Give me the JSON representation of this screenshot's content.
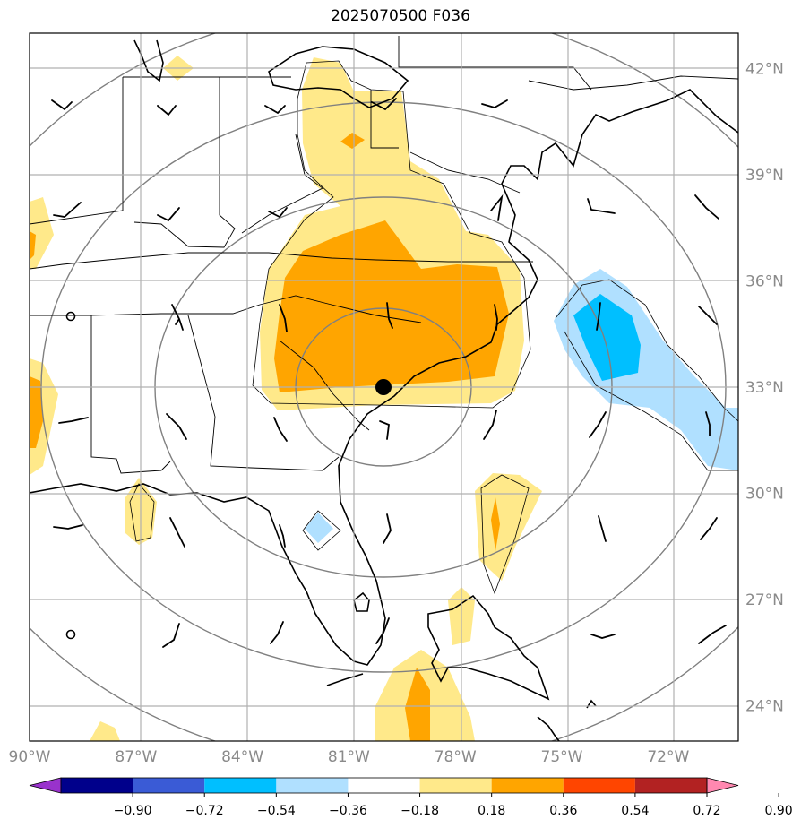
{
  "title": "2025070500 F036",
  "map": {
    "lon_range": [
      -90.0,
      -70.0
    ],
    "lat_range": [
      23.0,
      43.0
    ],
    "center_point": {
      "lon": -80.0,
      "lat": 33.0
    },
    "range_ring_degrees": [
      5,
      10,
      15,
      20
    ],
    "lon_ticks": [
      {
        "lon": -90,
        "label": "90°W"
      },
      {
        "lon": -87,
        "label": "87°W"
      },
      {
        "lon": -84,
        "label": "84°W"
      },
      {
        "lon": -81,
        "label": "81°W"
      },
      {
        "lon": -78,
        "label": "78°W"
      },
      {
        "lon": -75,
        "label": "75°W"
      },
      {
        "lon": -72,
        "label": "72°W"
      }
    ],
    "lat_ticks": [
      {
        "lat": 42,
        "label": "42°N"
      },
      {
        "lat": 39,
        "label": "39°N"
      },
      {
        "lat": 36,
        "label": "36°N"
      },
      {
        "lat": 33,
        "label": "33°N"
      },
      {
        "lat": 30,
        "label": "30°N"
      },
      {
        "lat": 27,
        "label": "27°N"
      },
      {
        "lat": 24,
        "label": "24°N"
      }
    ]
  },
  "colorbar": {
    "labels": [
      "−0.90",
      "−0.72",
      "−0.54",
      "−0.36",
      "−0.18",
      "0.18",
      "0.36",
      "0.54",
      "0.72",
      "0.90"
    ],
    "colors": [
      "#9932cc",
      "#00008b",
      "#3a5bd6",
      "#00bfff",
      "#b0e0ff",
      "#ffffff",
      "#ffe98a",
      "#ffa500",
      "#ff4500",
      "#b22222",
      "#ff88b0"
    ]
  },
  "colors": {
    "coast": "#000000",
    "grid": "#b0b0b0",
    "ring": "#808080",
    "pos_light": "#ffe98a",
    "pos_mid": "#ffa500",
    "neg_light": "#b0e0ff",
    "neg_mid": "#00bfff"
  }
}
